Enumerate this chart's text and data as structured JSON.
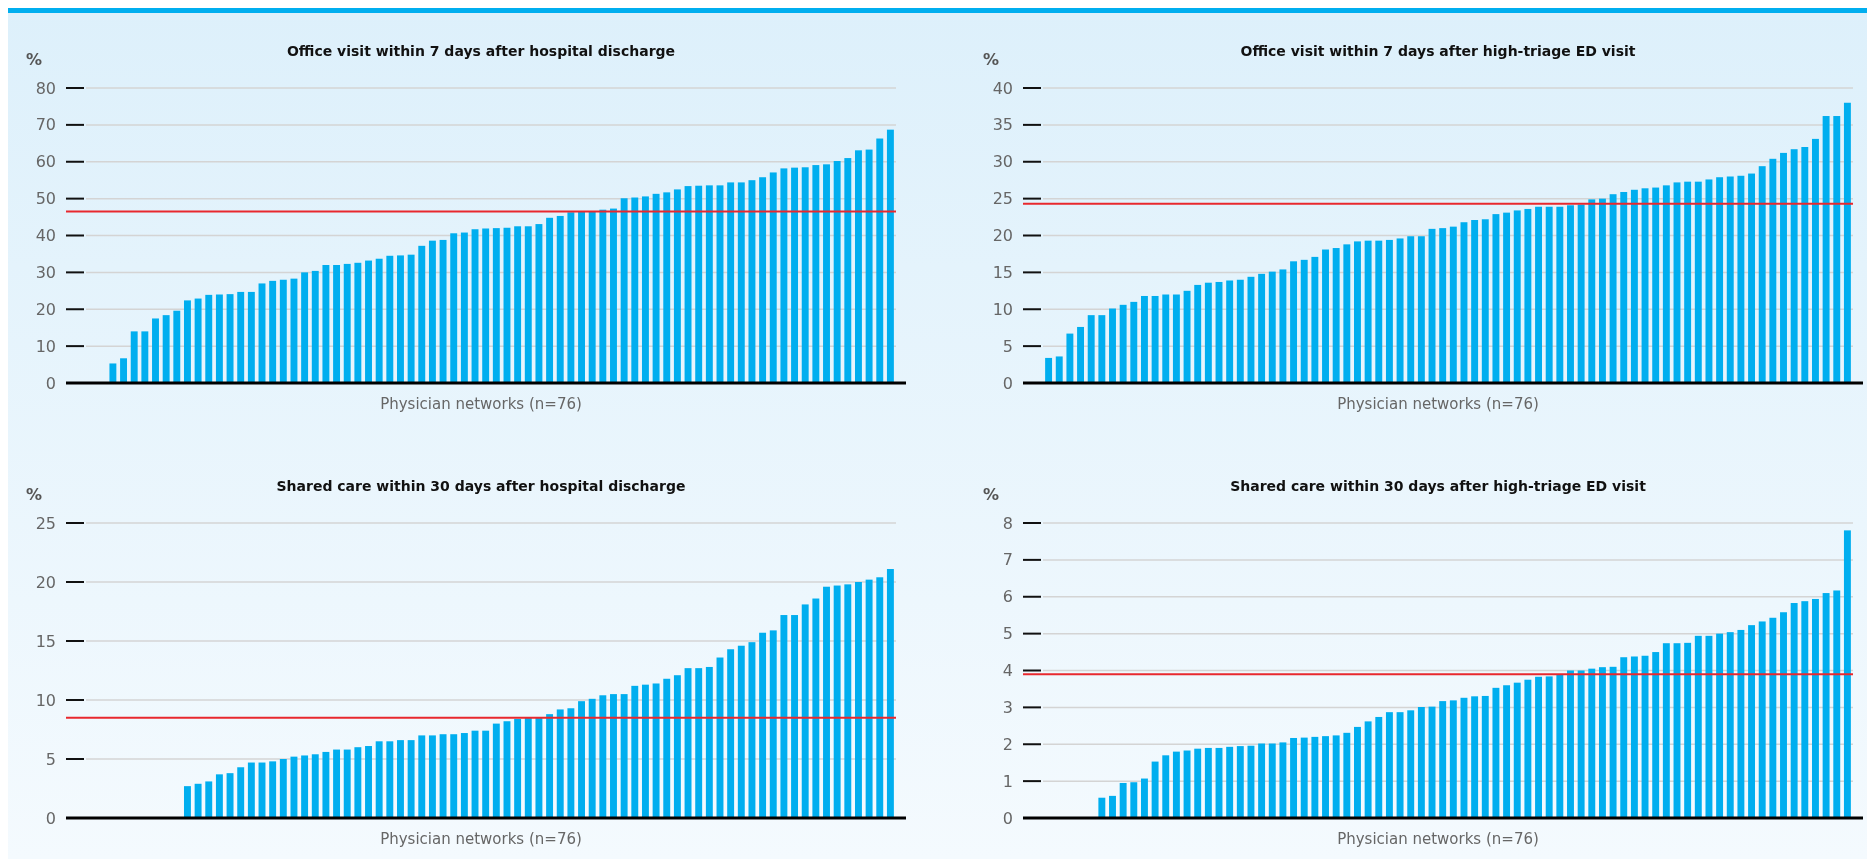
{
  "chart_data": [
    {
      "type": "bar",
      "title": "Office visit within 7 days after hospital discharge",
      "ylabel": "%",
      "xlabel": "Physician networks (n=76)",
      "color": "#00aeef",
      "grid": "y",
      "ylim": [
        0,
        80
      ],
      "yticks": [
        0,
        10,
        20,
        30,
        40,
        50,
        60,
        70,
        80
      ],
      "ref_lines": [
        {
          "axis": "y",
          "value": 46.5,
          "color": "#e8282e"
        }
      ],
      "categories": [
        null,
        null,
        null,
        null,
        null,
        null,
        null,
        null,
        null,
        null,
        null,
        null,
        null,
        null,
        null,
        null,
        null,
        null,
        null,
        null,
        null,
        null,
        null,
        null,
        null,
        null,
        null,
        null,
        null,
        null,
        null,
        null,
        null,
        null,
        null,
        null,
        null,
        null,
        null,
        null,
        null,
        null,
        null,
        null,
        null,
        null,
        null,
        null,
        null,
        null,
        null,
        null,
        null,
        null,
        null,
        null,
        null,
        null,
        null,
        null,
        null,
        null,
        null,
        null,
        null,
        null,
        null,
        null,
        null,
        null,
        null,
        null,
        null,
        null,
        null,
        null
      ],
      "values": [
        0,
        0,
        5.3,
        6.7,
        14,
        14,
        17.5,
        18.4,
        19.6,
        22.4,
        22.9,
        23.9,
        24,
        24.1,
        24.7,
        24.7,
        27,
        27.7,
        28,
        28.3,
        30,
        30.4,
        32,
        32,
        32.3,
        32.6,
        33.2,
        33.7,
        34.5,
        34.6,
        34.8,
        37.2,
        38.6,
        38.8,
        40.6,
        40.8,
        41.7,
        41.9,
        42,
        42.1,
        42.5,
        42.5,
        43.1,
        44.8,
        45.3,
        46.3,
        46.5,
        46.6,
        47,
        47.3,
        50.1,
        50.3,
        50.6,
        51.3,
        51.7,
        52.5,
        53.4,
        53.5,
        53.6,
        53.6,
        54.4,
        54.4,
        55,
        55.8,
        57.1,
        58.2,
        58.4,
        58.5,
        59.1,
        59.3,
        60.2,
        61,
        63.1,
        63.3,
        66.3,
        68.7
      ]
    },
    {
      "type": "bar",
      "title": "Office visit within 7 days after high-triage ED visit",
      "ylabel": "%",
      "xlabel": "Physician networks (n=76)",
      "color": "#00aeef",
      "grid": "y",
      "ylim": [
        0,
        40
      ],
      "yticks": [
        0,
        5,
        10,
        15,
        20,
        25,
        30,
        35,
        40
      ],
      "ref_lines": [
        {
          "axis": "y",
          "value": 24.3,
          "color": "#e8282e"
        }
      ],
      "categories": [
        null,
        null,
        null,
        null,
        null,
        null,
        null,
        null,
        null,
        null,
        null,
        null,
        null,
        null,
        null,
        null,
        null,
        null,
        null,
        null,
        null,
        null,
        null,
        null,
        null,
        null,
        null,
        null,
        null,
        null,
        null,
        null,
        null,
        null,
        null,
        null,
        null,
        null,
        null,
        null,
        null,
        null,
        null,
        null,
        null,
        null,
        null,
        null,
        null,
        null,
        null,
        null,
        null,
        null,
        null,
        null,
        null,
        null,
        null,
        null,
        null,
        null,
        null,
        null,
        null,
        null,
        null,
        null,
        null,
        null,
        null,
        null,
        null,
        null,
        null,
        null
      ],
      "values": [
        3.4,
        3.6,
        6.7,
        7.6,
        9.2,
        9.2,
        10.1,
        10.6,
        11,
        11.8,
        11.8,
        12,
        12,
        12.5,
        13.3,
        13.6,
        13.7,
        13.9,
        14,
        14.4,
        14.8,
        15.1,
        15.4,
        16.5,
        16.7,
        17.1,
        18.1,
        18.3,
        18.8,
        19.2,
        19.3,
        19.3,
        19.4,
        19.6,
        19.9,
        19.9,
        20.9,
        21,
        21.2,
        21.8,
        22.1,
        22.2,
        22.9,
        23.1,
        23.4,
        23.6,
        23.9,
        23.9,
        23.9,
        24.1,
        24.2,
        24.9,
        25,
        25.6,
        25.9,
        26.2,
        26.4,
        26.5,
        26.8,
        27.2,
        27.3,
        27.3,
        27.6,
        27.9,
        28,
        28.1,
        28.4,
        29.4,
        30.4,
        31.2,
        31.7,
        32,
        33.1,
        36.2,
        36.2,
        38
      ]
    },
    {
      "type": "bar",
      "title": "Shared care within 30 days after hospital discharge",
      "ylabel": "%",
      "xlabel": "Physician networks (n=76)",
      "color": "#00aeef",
      "grid": "y",
      "ylim": [
        0,
        25
      ],
      "yticks": [
        0,
        5,
        10,
        15,
        20,
        25
      ],
      "ref_lines": [
        {
          "axis": "y",
          "value": 8.5,
          "color": "#e8282e"
        }
      ],
      "categories": [
        null,
        null,
        null,
        null,
        null,
        null,
        null,
        null,
        null,
        null,
        null,
        null,
        null,
        null,
        null,
        null,
        null,
        null,
        null,
        null,
        null,
        null,
        null,
        null,
        null,
        null,
        null,
        null,
        null,
        null,
        null,
        null,
        null,
        null,
        null,
        null,
        null,
        null,
        null,
        null,
        null,
        null,
        null,
        null,
        null,
        null,
        null,
        null,
        null,
        null,
        null,
        null,
        null,
        null,
        null,
        null,
        null,
        null,
        null,
        null,
        null,
        null,
        null,
        null,
        null,
        null,
        null,
        null,
        null,
        null,
        null,
        null,
        null,
        null,
        null,
        null
      ],
      "values": [
        0,
        0,
        0,
        0,
        0,
        0,
        0,
        0,
        0,
        2.7,
        2.9,
        3.1,
        3.7,
        3.8,
        4.3,
        4.7,
        4.7,
        4.8,
        5,
        5.2,
        5.3,
        5.4,
        5.6,
        5.8,
        5.8,
        6,
        6.1,
        6.5,
        6.5,
        6.6,
        6.6,
        7,
        7,
        7.1,
        7.1,
        7.2,
        7.4,
        7.4,
        8,
        8.2,
        8.4,
        8.5,
        8.5,
        8.8,
        9.2,
        9.3,
        9.9,
        10.1,
        10.4,
        10.5,
        10.5,
        11.2,
        11.3,
        11.4,
        11.8,
        12.1,
        12.7,
        12.7,
        12.8,
        13.6,
        14.3,
        14.6,
        14.9,
        15.7,
        15.9,
        17.2,
        17.2,
        18.1,
        18.6,
        19.6,
        19.7,
        19.8,
        20,
        20.2,
        20.4,
        21.1
      ]
    },
    {
      "type": "bar",
      "title": "Shared care within 30 days after high-triage ED visit",
      "ylabel": "%",
      "xlabel": "Physician networks (n=76)",
      "color": "#00aeef",
      "grid": "y",
      "ylim": [
        0,
        8
      ],
      "yticks": [
        0,
        1,
        2,
        3,
        4,
        5,
        6,
        7,
        8
      ],
      "ref_lines": [
        {
          "axis": "y",
          "value": 3.9,
          "color": "#e8282e"
        }
      ],
      "categories": [
        null,
        null,
        null,
        null,
        null,
        null,
        null,
        null,
        null,
        null,
        null,
        null,
        null,
        null,
        null,
        null,
        null,
        null,
        null,
        null,
        null,
        null,
        null,
        null,
        null,
        null,
        null,
        null,
        null,
        null,
        null,
        null,
        null,
        null,
        null,
        null,
        null,
        null,
        null,
        null,
        null,
        null,
        null,
        null,
        null,
        null,
        null,
        null,
        null,
        null,
        null,
        null,
        null,
        null,
        null,
        null,
        null,
        null,
        null,
        null,
        null,
        null,
        null,
        null,
        null,
        null,
        null,
        null,
        null,
        null,
        null,
        null,
        null,
        null,
        null,
        null
      ],
      "values": [
        0,
        0,
        0,
        0,
        0,
        0.55,
        0.6,
        0.95,
        0.97,
        1.07,
        1.53,
        1.7,
        1.8,
        1.83,
        1.88,
        1.9,
        1.9,
        1.93,
        1.95,
        1.96,
        2.02,
        2.02,
        2.05,
        2.17,
        2.18,
        2.2,
        2.22,
        2.24,
        2.31,
        2.47,
        2.62,
        2.74,
        2.87,
        2.87,
        2.92,
        3.01,
        3.02,
        3.17,
        3.19,
        3.26,
        3.3,
        3.31,
        3.53,
        3.6,
        3.67,
        3.75,
        3.83,
        3.84,
        3.9,
        4,
        4,
        4.05,
        4.09,
        4.1,
        4.36,
        4.38,
        4.4,
        4.5,
        4.74,
        4.74,
        4.75,
        4.94,
        4.94,
        5,
        5.04,
        5.1,
        5.23,
        5.33,
        5.43,
        5.58,
        5.83,
        5.88,
        5.94,
        6.1,
        6.17,
        7.8
      ]
    }
  ]
}
